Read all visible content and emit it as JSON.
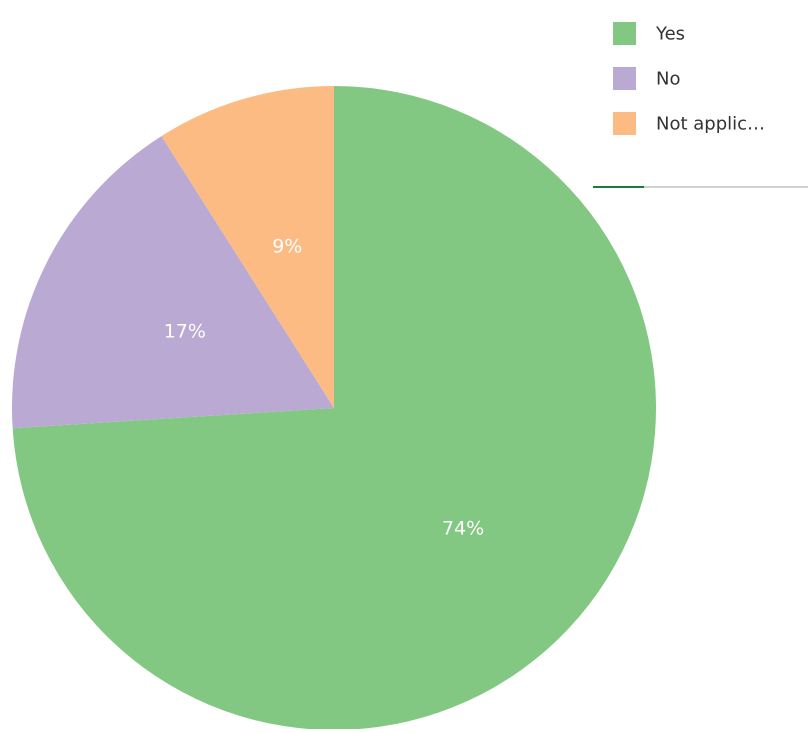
{
  "chart_data": {
    "type": "pie",
    "title": "",
    "slices": [
      {
        "label": "Yes",
        "legend_label": "Yes",
        "value": 74,
        "data_label": "74%",
        "color": "#82c882"
      },
      {
        "label": "No",
        "legend_label": "No",
        "value": 17,
        "data_label": "17%",
        "color": "#b9a9d3"
      },
      {
        "label": "Not applicable",
        "legend_label": "Not applic…",
        "value": 9,
        "data_label": "9%",
        "color": "#fdbb84"
      }
    ],
    "legend_position": "top-right",
    "start_angle": "12 o'clock",
    "direction": "clockwise"
  },
  "colors": {
    "data_label_text": "#ffffff",
    "legend_text": "#333333",
    "legend_divider": "#1f7a3a"
  }
}
